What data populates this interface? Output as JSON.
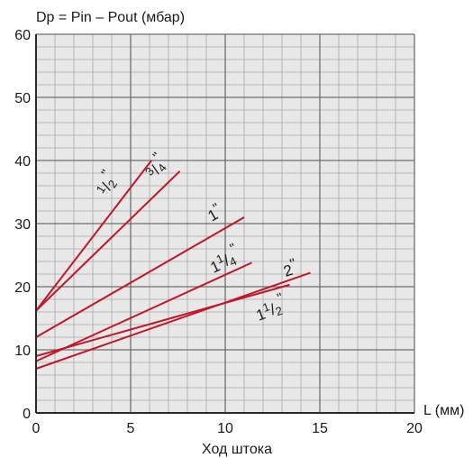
{
  "chart_data": {
    "type": "line",
    "ylabel": "Dp = Pin – Pout (мбар)",
    "xunit": "L (мм)",
    "xlabel": "Ход штока",
    "xlim": [
      0,
      20
    ],
    "ylim": [
      0,
      60
    ],
    "xticks": [
      "0",
      "5",
      "10",
      "15",
      "20"
    ],
    "yticks": [
      "0",
      "10",
      "20",
      "30",
      "40",
      "50",
      "60"
    ],
    "grid": true,
    "grid_minor_x": 1,
    "grid_minor_y": 2,
    "line_color": "#c0182a",
    "grid_color": "#a8a8a8",
    "plot_bg": "#e8e8e8",
    "series": [
      {
        "name": "1/2\"",
        "x": [
          0,
          6.1
        ],
        "y": [
          16.2,
          40.0
        ]
      },
      {
        "name": "3/4\"",
        "x": [
          0,
          7.6
        ],
        "y": [
          16.2,
          38.3
        ]
      },
      {
        "name": "1\"",
        "x": [
          0,
          11.0
        ],
        "y": [
          12.0,
          31.0
        ]
      },
      {
        "name": "1 1/4\"",
        "x": [
          0,
          11.4
        ],
        "y": [
          8.2,
          23.8
        ]
      },
      {
        "name": "2\"",
        "x": [
          0,
          14.5
        ],
        "y": [
          7.0,
          22.2
        ]
      },
      {
        "name": "1 1/2\"",
        "x": [
          0,
          13.4
        ],
        "y": [
          9.0,
          20.3
        ]
      }
    ]
  }
}
